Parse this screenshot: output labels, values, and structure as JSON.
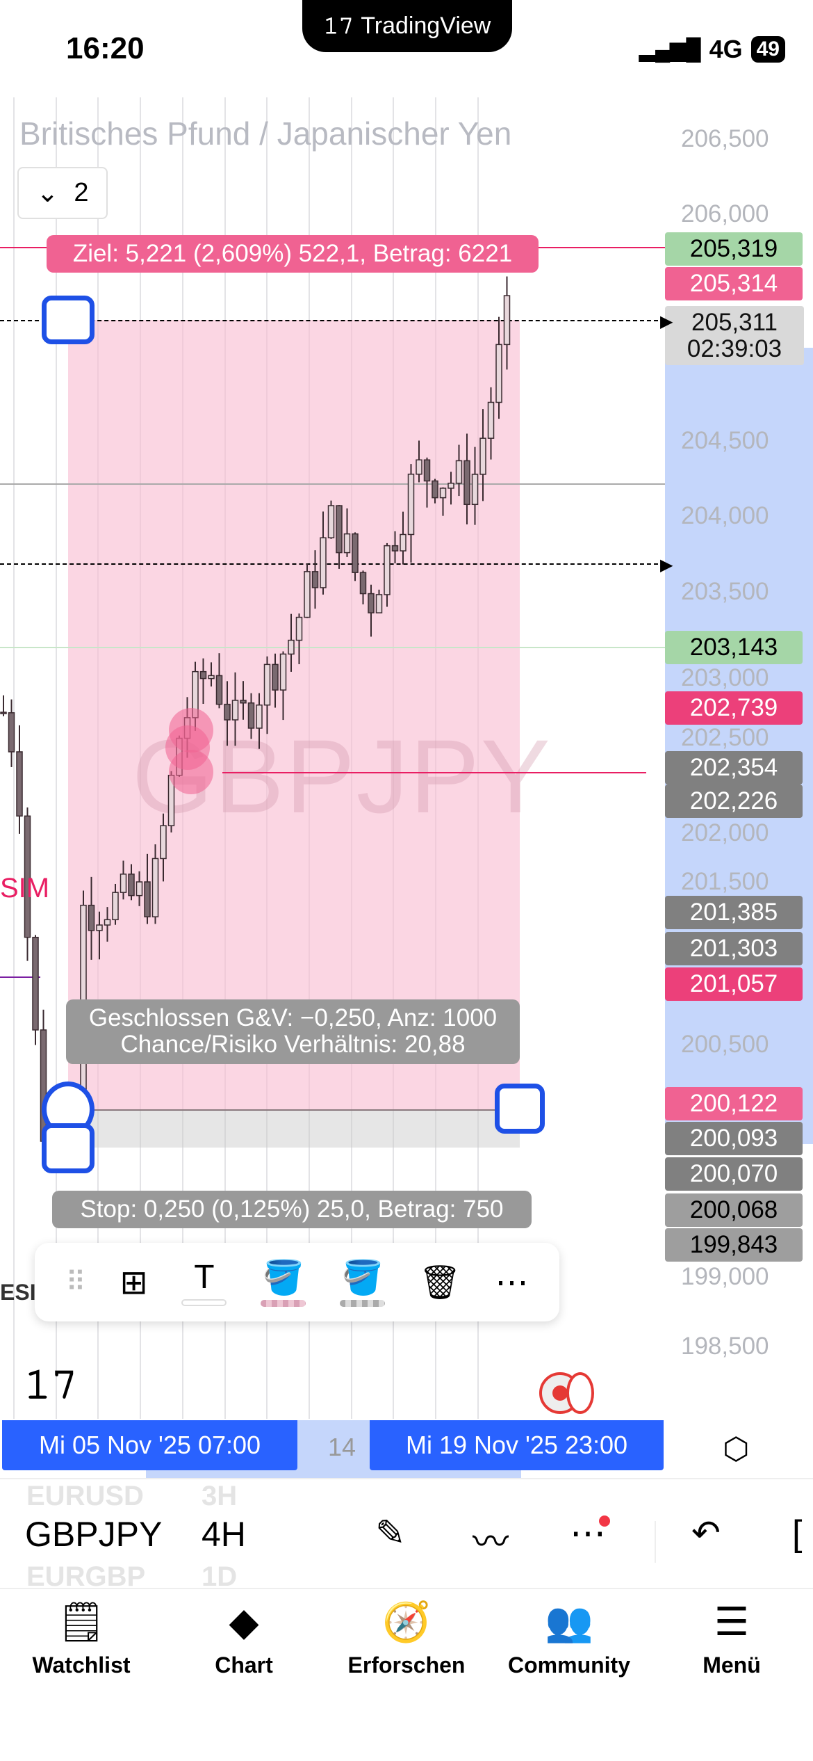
{
  "status_bar": {
    "time": "16:20",
    "app_pill": "TradingView",
    "network": "4G",
    "battery": "49"
  },
  "chart": {
    "title": "Britisches Pfund / Japanischer Yen",
    "layout_count": "2",
    "watermark": "GBPJPY",
    "side_label": "SIM",
    "side_label2": "ESI",
    "axis_ticks": [
      "206,500",
      "206,000",
      "204,500",
      "204,000",
      "203,500",
      "203,000",
      "202,500",
      "202,000",
      "201,500",
      "200,500",
      "199,000",
      "198,500"
    ],
    "price_labels": [
      {
        "value": "205,319",
        "color": "#a5d6a7",
        "text": "#000"
      },
      {
        "value": "205,314",
        "color": "#f06292",
        "text": "#fff"
      },
      {
        "value": "203,143",
        "color": "#a5d6a7",
        "text": "#000"
      },
      {
        "value": "202,739",
        "color": "#ec407a",
        "text": "#fff"
      },
      {
        "value": "202,354",
        "color": "#808080",
        "text": "#fff"
      },
      {
        "value": "202,226",
        "color": "#808080",
        "text": "#fff"
      },
      {
        "value": "201,385",
        "color": "#808080",
        "text": "#fff"
      },
      {
        "value": "201,303",
        "color": "#808080",
        "text": "#fff"
      },
      {
        "value": "201,057",
        "color": "#ec407a",
        "text": "#fff"
      },
      {
        "value": "200,122",
        "color": "#f06292",
        "text": "#fff"
      },
      {
        "value": "200,093",
        "color": "#808080",
        "text": "#fff"
      },
      {
        "value": "200,070",
        "color": "#808080",
        "text": "#fff"
      },
      {
        "value": "200,068",
        "color": "#9e9e9e",
        "text": "#000"
      },
      {
        "value": "199,843",
        "color": "#9e9e9e",
        "text": "#000"
      }
    ],
    "current_price": "205,311",
    "countdown": "02:39:03",
    "target_label": "Ziel: 5,221 (2,609%) 522,1, Betrag: 6221",
    "pnl_label": "Geschlossen G&V: −0,250, Anz: 1000",
    "ratio_label": "Chance/Risiko Verhältnis: 20,88",
    "stop_label": "Stop: 0,250 (0,125%) 25,0, Betrag: 750",
    "date_start": "Mi 05 Nov '25   07:00",
    "date_end": "Mi 19 Nov '25   23:00",
    "date_hidden": "14"
  },
  "drawing_toolbar": [
    "drag-handle",
    "add-to-favorites",
    "text",
    "fill-color",
    "background-color",
    "delete",
    "more"
  ],
  "symbol_bar": {
    "prev_symbol": "EURUSD",
    "prev_interval": "3H",
    "symbol": "GBPJPY",
    "interval": "4H",
    "next_symbol": "EURGBP",
    "next_interval": "1D"
  },
  "nav": [
    {
      "label": "Watchlist"
    },
    {
      "label": "Chart"
    },
    {
      "label": "Erforschen"
    },
    {
      "label": "Community"
    },
    {
      "label": "Menü"
    }
  ]
}
